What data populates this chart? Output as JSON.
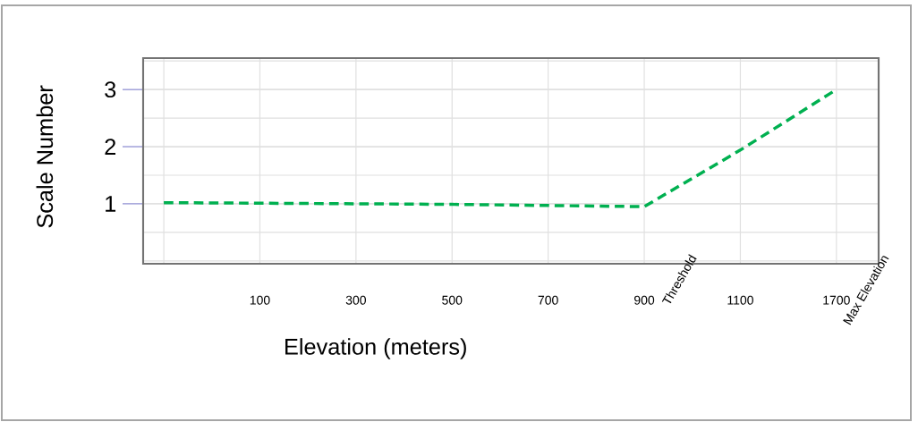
{
  "chart_data": {
    "type": "line",
    "xlabel": "Elevation (meters)",
    "ylabel": "Scale Number",
    "categories": [
      null,
      "100",
      "300",
      "500",
      "700",
      "900",
      "1100",
      "1700"
    ],
    "series": [
      {
        "color": "#00b050",
        "values": [
          1.02,
          1.01,
          1.0,
          0.99,
          0.97,
          0.95,
          1.94,
          3.0
        ]
      }
    ],
    "ylim": [
      -0.05,
      3.55
    ],
    "yticks": [
      1,
      2,
      3
    ],
    "grid": true,
    "marker": "none",
    "line_style": "dashed",
    "annotations": [
      "Threshold",
      "Max Elevation"
    ]
  }
}
